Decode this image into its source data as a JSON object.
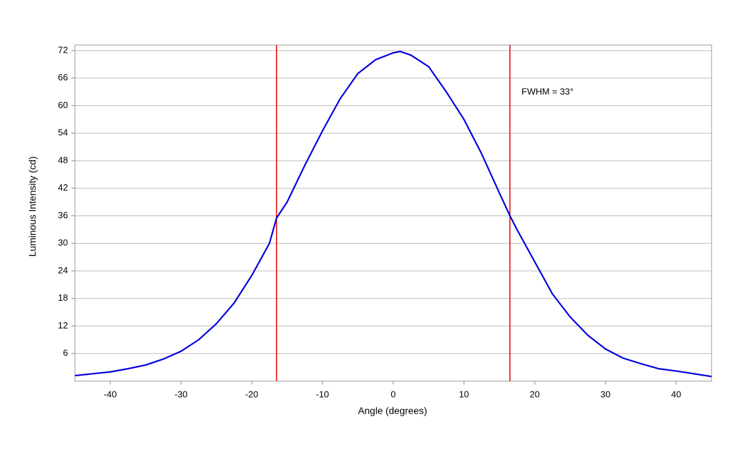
{
  "chart_data": {
    "type": "line",
    "xlabel": "Angle (degrees)",
    "ylabel": "Luminous Intensity (cd)",
    "annotation": "FWHM = 33°",
    "x": [
      -45,
      -40,
      -37.5,
      -35,
      -32.5,
      -30,
      -27.5,
      -25,
      -22.5,
      -20,
      -17.5,
      -16.5,
      -15,
      -12.5,
      -10,
      -7.5,
      -5,
      -2.5,
      0,
      1,
      2.5,
      5,
      7.5,
      10,
      12.5,
      15,
      16.5,
      17.5,
      20,
      22.5,
      25,
      27.5,
      30,
      32.5,
      35,
      37.5,
      40,
      42.5,
      45
    ],
    "series": [
      {
        "color": "#0000dd",
        "values": [
          1.2,
          2.0,
          2.7,
          3.5,
          4.8,
          6.5,
          9.0,
          12.5,
          17,
          23,
          30,
          35.5,
          39,
          47,
          54.5,
          61.5,
          67,
          70,
          71.5,
          71.8,
          71,
          68.5,
          63,
          57,
          49.5,
          41,
          36,
          33,
          26,
          19,
          14,
          10,
          7,
          5,
          3.8,
          2.7,
          2.2,
          1.6,
          1.0
        ]
      }
    ],
    "vlines": [
      -16.5,
      16.5
    ],
    "vline_color": "#dd0000",
    "xlim": [
      -45,
      45
    ],
    "ylim": [
      0,
      73.2
    ],
    "xticks": [
      -40,
      -30,
      -20,
      -10,
      0,
      10,
      20,
      30,
      40
    ],
    "yticks": [
      6,
      12,
      18,
      24,
      30,
      36,
      42,
      48,
      54,
      60,
      66,
      72
    ],
    "grid": true
  }
}
